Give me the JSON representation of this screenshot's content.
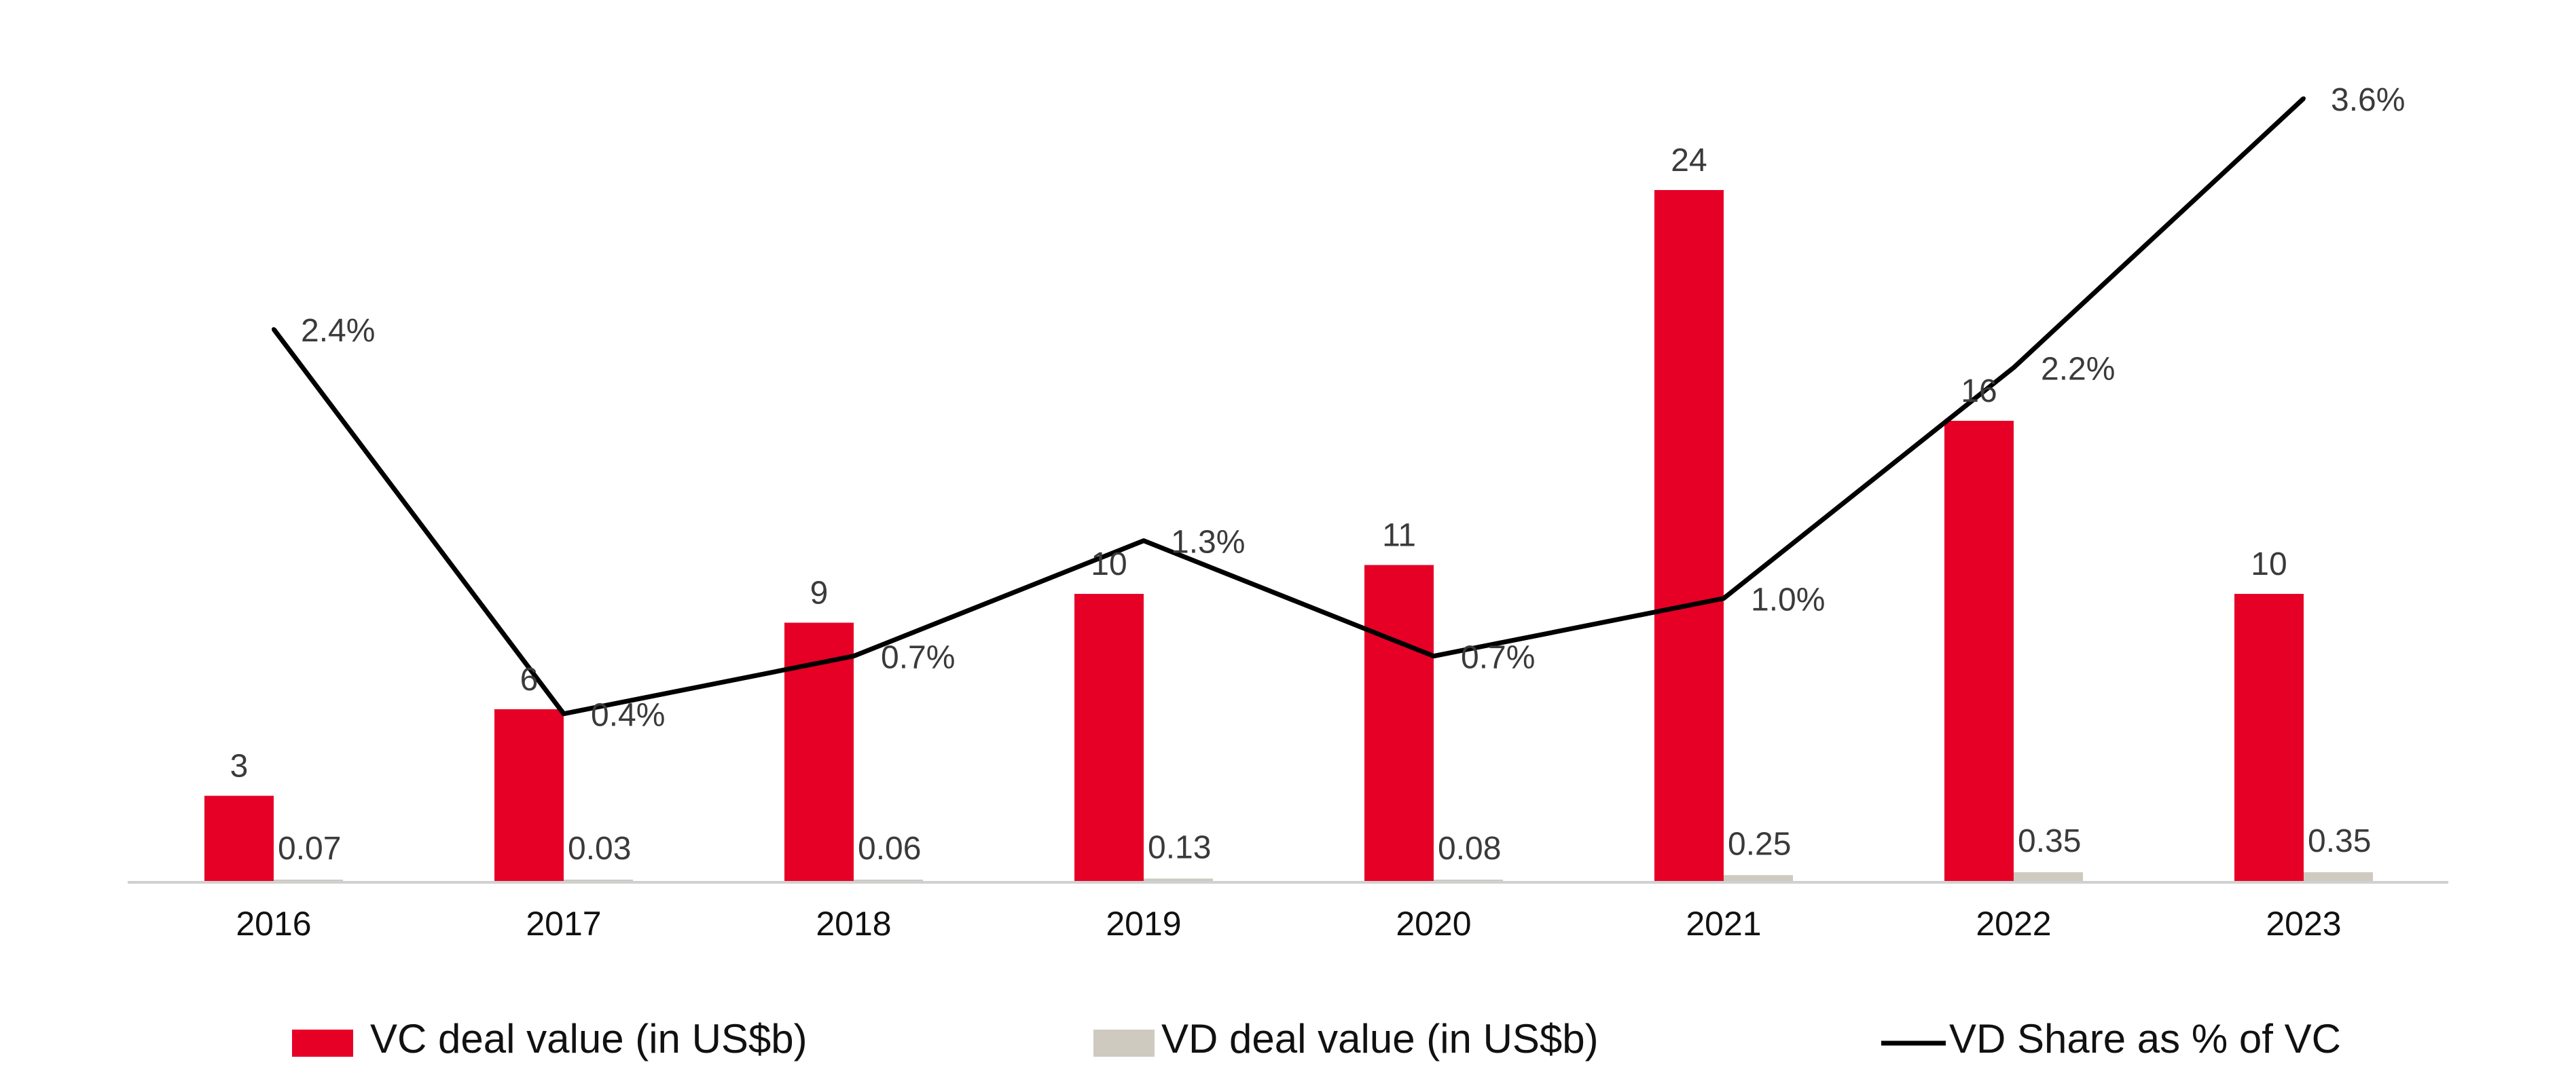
{
  "chart_data": {
    "type": "bar",
    "categories": [
      "2016",
      "2017",
      "2018",
      "2019",
      "2020",
      "2021",
      "2022",
      "2023"
    ],
    "series": [
      {
        "name": "VC deal value (in US$b)",
        "kind": "bar",
        "color": "#E60026",
        "values": [
          3,
          6,
          9,
          10,
          11,
          24,
          16,
          10
        ],
        "labels": [
          "3",
          "6",
          "9",
          "10",
          "11",
          "24",
          "16",
          "10"
        ]
      },
      {
        "name": "VD deal value (in US$b)",
        "kind": "bar",
        "color": "#CFCAC0",
        "values": [
          0.07,
          0.03,
          0.06,
          0.13,
          0.08,
          0.25,
          0.35,
          0.35
        ],
        "labels": [
          "0.07",
          "0.03",
          "0.06",
          "0.13",
          "0.08",
          "0.25",
          "0.35",
          "0.35"
        ]
      },
      {
        "name": "VD Share as % of VC",
        "kind": "line",
        "color": "#000000",
        "axis": "secondary",
        "values": [
          2.4,
          0.4,
          0.7,
          1.3,
          0.7,
          1.0,
          2.2,
          3.6
        ],
        "labels": [
          "2.4%",
          "0.4%",
          "0.7%",
          "1.3%",
          "0.7%",
          "1.0%",
          "2.2%",
          "3.6%"
        ]
      }
    ],
    "ylim": [
      0,
      24
    ],
    "y2lim": [
      0,
      3.6
    ],
    "grid": false,
    "legend": "bottom"
  }
}
